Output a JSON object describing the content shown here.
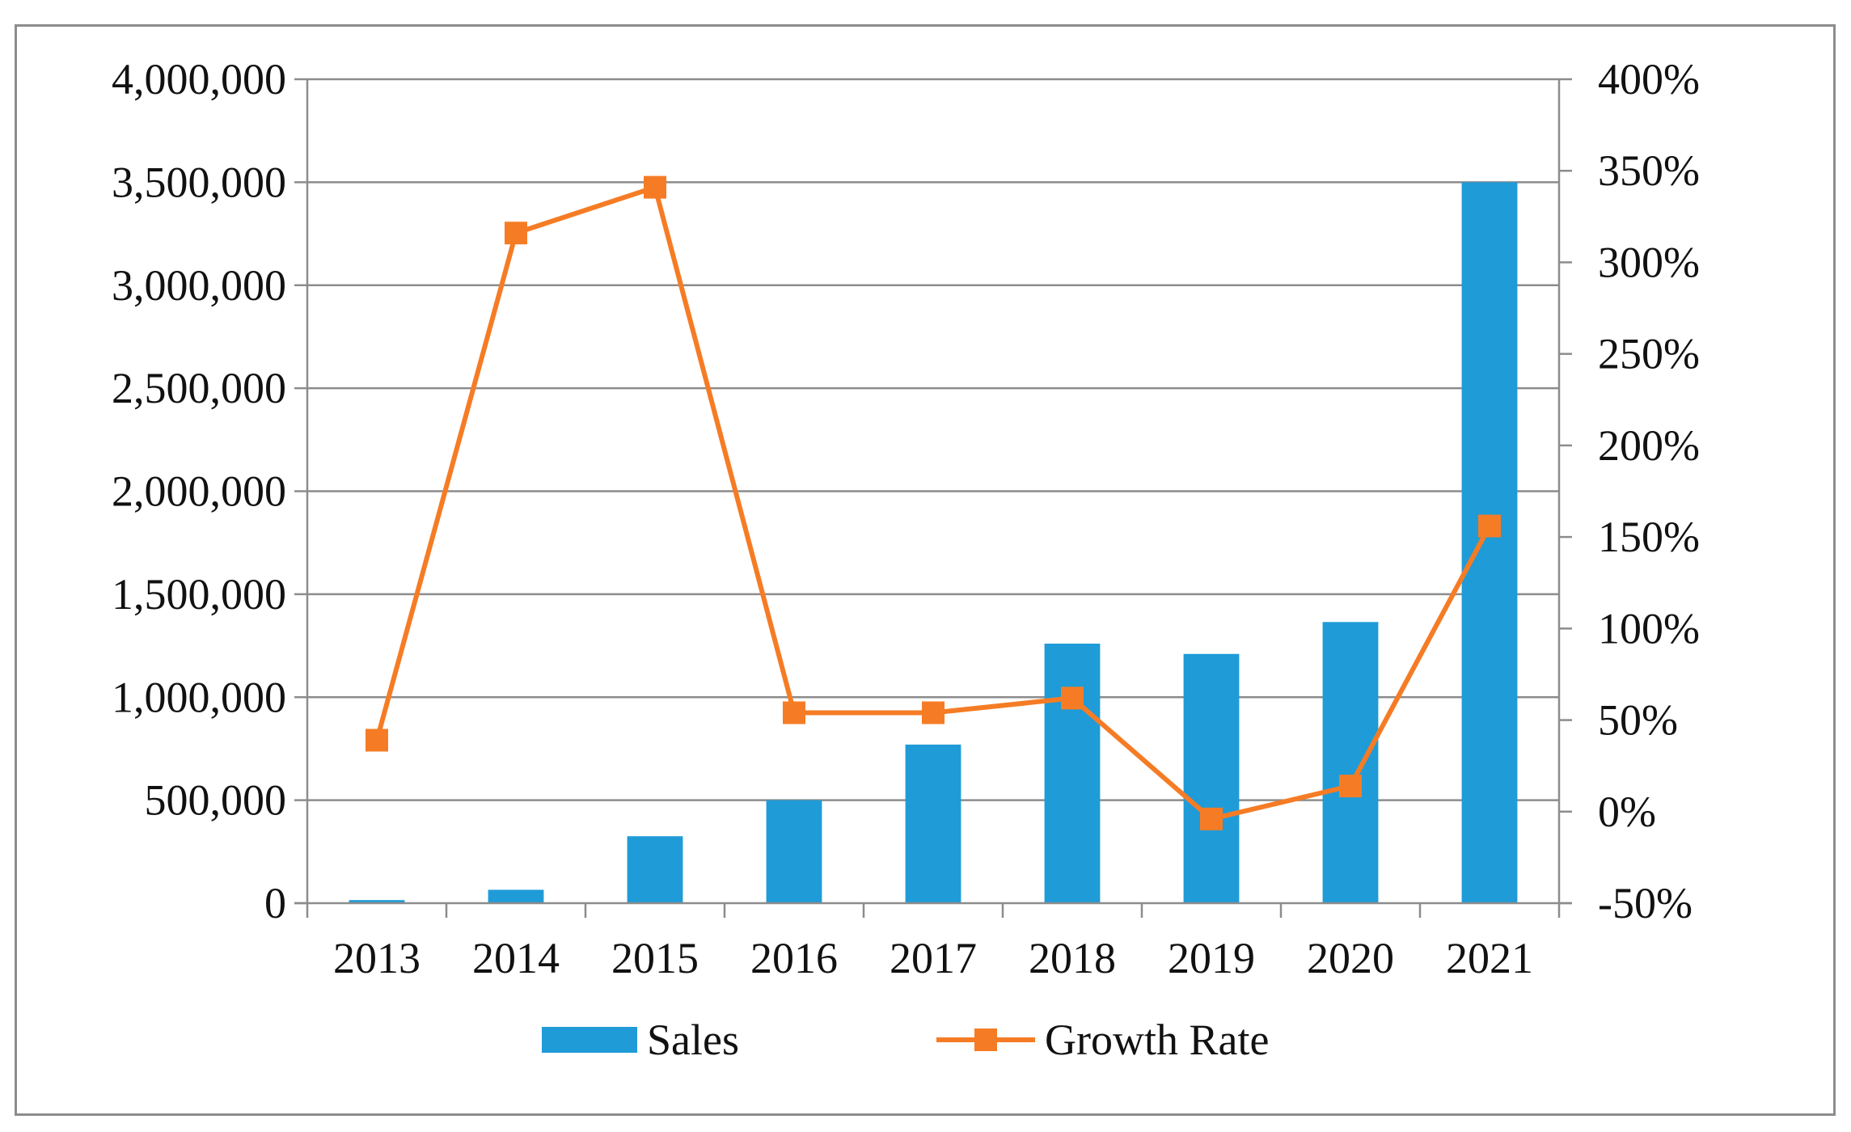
{
  "chart_data": {
    "type": "bar",
    "categories": [
      "2013",
      "2014",
      "2015",
      "2016",
      "2017",
      "2018",
      "2019",
      "2020",
      "2021"
    ],
    "series": [
      {
        "name": "Sales",
        "type": "bar",
        "axis": "left",
        "color": "#1f9bd7",
        "values": [
          15000,
          65000,
          325000,
          500000,
          770000,
          1260000,
          1210000,
          1365000,
          3500000
        ]
      },
      {
        "name": "Growth Rate",
        "type": "line",
        "axis": "right",
        "color": "#f57c25",
        "marker": "square",
        "values": [
          39,
          316,
          341,
          54,
          54,
          62,
          -4,
          14,
          156
        ]
      }
    ],
    "y_left": {
      "ylim": [
        0,
        4000000
      ],
      "ticks": [
        0,
        500000,
        1000000,
        1500000,
        2000000,
        2500000,
        3000000,
        3500000,
        4000000
      ],
      "tick_labels": [
        "0",
        "500,000",
        "1,000,000",
        "1,500,000",
        "2,000,000",
        "2,500,000",
        "3,000,000",
        "3,500,000",
        "4,000,000"
      ]
    },
    "y_right": {
      "ylim": [
        -50,
        400
      ],
      "ticks": [
        -50,
        0,
        50,
        100,
        150,
        200,
        250,
        300,
        350,
        400
      ],
      "tick_labels": [
        "-50%",
        "0%",
        "50%",
        "100%",
        "150%",
        "200%",
        "250%",
        "300%",
        "350%",
        "400%"
      ]
    },
    "title": "",
    "xlabel": "",
    "grid": "horizontal",
    "legend": {
      "position": "bottom",
      "entries": [
        "Sales",
        "Growth Rate"
      ]
    }
  }
}
